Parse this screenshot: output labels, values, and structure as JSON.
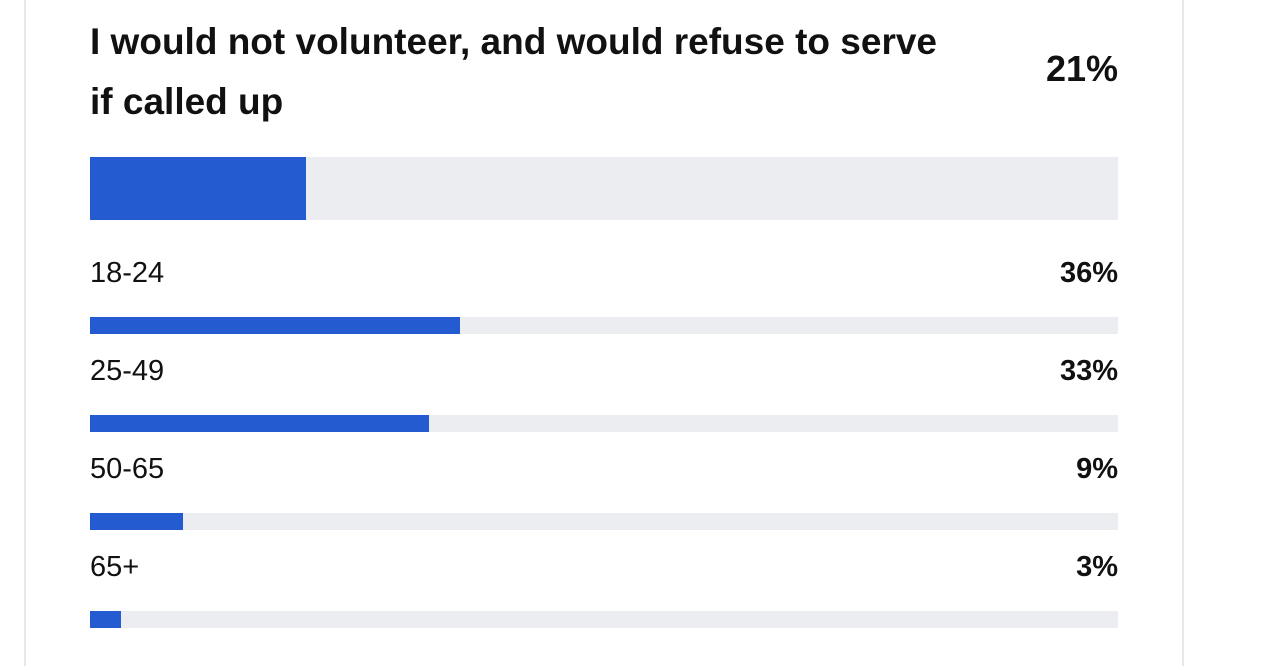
{
  "xlim": [
    0,
    100
  ],
  "summary": {
    "text": "I would not volunteer, and would refuse to serve if called up",
    "value": 21,
    "value_label": "21%"
  },
  "groups": [
    {
      "label": "18-24",
      "value": 36,
      "value_label": "36%"
    },
    {
      "label": "25-49",
      "value": 33,
      "value_label": "33%"
    },
    {
      "label": "50-65",
      "value": 9,
      "value_label": "9%"
    },
    {
      "label": "65+",
      "value": 3,
      "value_label": "3%"
    }
  ]
}
